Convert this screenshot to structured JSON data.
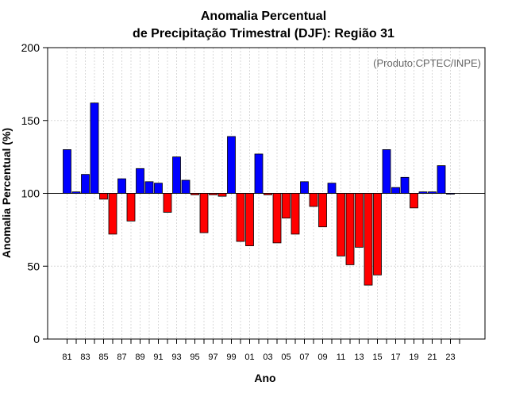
{
  "chart_data": {
    "type": "bar",
    "title": [
      "Anomalia Percentual",
      "de Precipitação Trimestral (DJF): Região 31"
    ],
    "xlabel": "Ano",
    "ylabel": "Anomalia Percentual (%)",
    "annotation": "(Produto:CPTEC/INPE)",
    "ylim": [
      0,
      200
    ],
    "yticks": [
      0,
      50,
      100,
      150,
      200
    ],
    "baseline": 100,
    "grid": true,
    "colors": {
      "above": "#0000ff",
      "below": "#ff0000",
      "edge": "#000000",
      "grid": "#d8d8d8"
    },
    "categories": [
      "81",
      "82",
      "83",
      "84",
      "85",
      "86",
      "87",
      "88",
      "89",
      "90",
      "91",
      "92",
      "93",
      "94",
      "95",
      "96",
      "97",
      "98",
      "99",
      "00",
      "01",
      "02",
      "03",
      "04",
      "05",
      "06",
      "07",
      "08",
      "09",
      "10",
      "11",
      "12",
      "13",
      "14",
      "15",
      "16",
      "17",
      "18",
      "19",
      "20",
      "21",
      "22",
      "23",
      "24"
    ],
    "tick_labels": [
      "81",
      "83",
      "85",
      "87",
      "89",
      "91",
      "93",
      "95",
      "97",
      "99",
      "01",
      "03",
      "05",
      "07",
      "09",
      "11",
      "13",
      "15",
      "17",
      "19",
      "21",
      "23"
    ],
    "values": [
      130,
      101,
      113,
      162,
      96,
      72,
      110,
      81,
      117,
      108,
      107,
      87,
      125,
      109,
      99,
      73,
      99,
      98,
      139,
      67,
      64,
      127,
      99,
      66,
      83,
      72,
      108,
      91,
      77,
      107,
      57,
      51,
      63,
      37,
      44,
      130,
      104,
      111,
      90,
      101,
      101,
      119,
      100,
      null
    ]
  }
}
